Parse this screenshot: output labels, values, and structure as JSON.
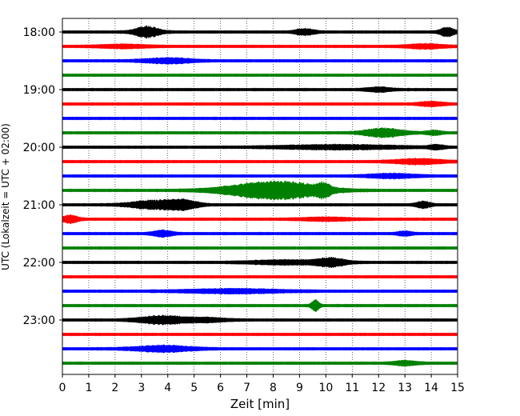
{
  "chart_data": {
    "type": "line",
    "title": "",
    "xlabel": "Zeit  [min]",
    "ylabel": "UTC (Lokalzeit = UTC + 02:00)",
    "xlim": [
      0,
      15
    ],
    "x_ticks": [
      "0",
      "1",
      "2",
      "3",
      "4",
      "5",
      "6",
      "7",
      "8",
      "9",
      "10",
      "11",
      "12",
      "13",
      "14",
      "15"
    ],
    "y_tick_labels": [
      "18:00",
      "19:00",
      "20:00",
      "21:00",
      "22:00",
      "23:00"
    ],
    "grid": "vertical-dotted",
    "trace_interval_min": 15,
    "trace_colors": [
      "#000000",
      "#ff0000",
      "#0000ff",
      "#008000"
    ],
    "traces": [
      {
        "start": "18:00",
        "color": "#000000",
        "bursts": [
          [
            3.2,
            0.5,
            6
          ],
          [
            14.6,
            0.3,
            4.5
          ],
          [
            9.2,
            0.4,
            3
          ]
        ]
      },
      {
        "start": "18:15",
        "color": "#ff0000",
        "bursts": [
          [
            2.3,
            1.0,
            1.5
          ],
          [
            13.8,
            0.8,
            2
          ]
        ]
      },
      {
        "start": "18:30",
        "color": "#0000ff",
        "bursts": [
          [
            4.0,
            1.0,
            2.5
          ]
        ]
      },
      {
        "start": "18:45",
        "color": "#008000",
        "bursts": []
      },
      {
        "start": "19:00",
        "color": "#000000",
        "bursts": [
          [
            12.0,
            0.5,
            2
          ]
        ]
      },
      {
        "start": "19:15",
        "color": "#ff0000",
        "bursts": [
          [
            14.0,
            0.5,
            2
          ]
        ]
      },
      {
        "start": "19:30",
        "color": "#0000ff",
        "bursts": []
      },
      {
        "start": "19:45",
        "color": "#008000",
        "bursts": [
          [
            12.2,
            0.8,
            4.5
          ],
          [
            14.1,
            0.3,
            2
          ]
        ]
      },
      {
        "start": "20:00",
        "color": "#000000",
        "bursts": [
          [
            10.5,
            2.5,
            2
          ],
          [
            14.2,
            0.3,
            2
          ]
        ]
      },
      {
        "start": "20:15",
        "color": "#ff0000",
        "bursts": [
          [
            13.5,
            1.0,
            2.5
          ]
        ]
      },
      {
        "start": "20:30",
        "color": "#0000ff",
        "bursts": [
          [
            12.5,
            1.0,
            2
          ]
        ]
      },
      {
        "start": "20:45",
        "color": "#008000",
        "bursts": [
          [
            8.5,
            1.6,
            8
          ],
          [
            7.0,
            1.5,
            4
          ],
          [
            9.9,
            0.3,
            5
          ]
        ]
      },
      {
        "start": "21:00",
        "color": "#000000",
        "bursts": [
          [
            3.5,
            1.0,
            4.5
          ],
          [
            4.6,
            0.6,
            4
          ],
          [
            13.7,
            0.3,
            3
          ]
        ]
      },
      {
        "start": "21:15",
        "color": "#ff0000",
        "bursts": [
          [
            0.3,
            0.3,
            4
          ],
          [
            10.0,
            1.0,
            1.5
          ]
        ]
      },
      {
        "start": "21:30",
        "color": "#0000ff",
        "bursts": [
          [
            3.8,
            0.4,
            3
          ],
          [
            13.0,
            0.3,
            2
          ]
        ]
      },
      {
        "start": "21:45",
        "color": "#008000",
        "bursts": []
      },
      {
        "start": "22:00",
        "color": "#000000",
        "bursts": [
          [
            10.2,
            0.6,
            4
          ],
          [
            8.5,
            1.5,
            2
          ]
        ]
      },
      {
        "start": "22:15",
        "color": "#ff0000",
        "bursts": []
      },
      {
        "start": "22:30",
        "color": "#0000ff",
        "bursts": [
          [
            6.5,
            2.0,
            2
          ]
        ]
      },
      {
        "start": "22:45",
        "color": "#008000",
        "bursts": [
          [
            9.6,
            0.15,
            6
          ]
        ]
      },
      {
        "start": "23:00",
        "color": "#000000",
        "bursts": [
          [
            3.8,
            1.0,
            4
          ],
          [
            5.5,
            0.8,
            2
          ]
        ]
      },
      {
        "start": "23:15",
        "color": "#ff0000",
        "bursts": []
      },
      {
        "start": "23:30",
        "color": "#0000ff",
        "bursts": [
          [
            3.8,
            1.2,
            3
          ]
        ]
      },
      {
        "start": "23:45",
        "color": "#008000",
        "bursts": [
          [
            13.0,
            0.5,
            2
          ]
        ]
      }
    ]
  }
}
